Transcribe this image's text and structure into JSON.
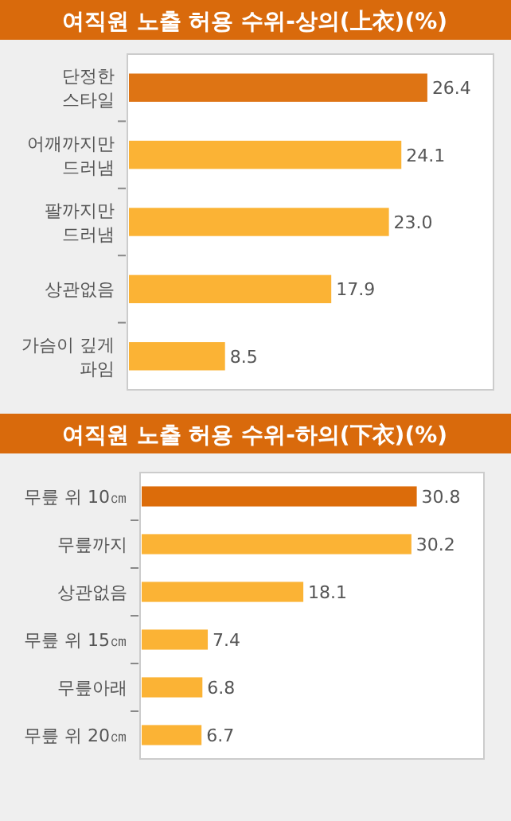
{
  "chart_data": [
    {
      "type": "bar",
      "orientation": "horizontal",
      "title": "여직원 노출 허용 수위-상의(上衣)(%)",
      "categories": [
        "단정한\n스타일",
        "어깨까지만\n드러냄",
        "팔까지만\n드러냄",
        "상관없음",
        "가슴이 깊게\n파임"
      ],
      "values": [
        26.4,
        24.1,
        23.0,
        17.9,
        8.5
      ],
      "colors": [
        "#de7414",
        "#fbb335",
        "#fbb335",
        "#fbb335",
        "#fbb335"
      ],
      "value_labels": [
        "26.4",
        "24.1",
        "23.0",
        "17.9",
        "8.5"
      ]
    },
    {
      "type": "bar",
      "orientation": "horizontal",
      "title": "여직원 노출 허용 수위-하의(下衣)(%)",
      "categories": [
        "무릎 위 10㎝",
        "무릎까지",
        "상관없음",
        "무릎 위 15㎝",
        "무릎아래",
        "무릎 위 20㎝"
      ],
      "values": [
        30.8,
        30.2,
        18.1,
        7.4,
        6.8,
        6.7
      ],
      "colors": [
        "#dc6c0a",
        "#fbb335",
        "#fbb335",
        "#fbb335",
        "#fbb335",
        "#fbb335"
      ],
      "value_labels": [
        "30.8",
        "30.2",
        "18.1",
        "7.4",
        "6.8",
        "6.7"
      ]
    }
  ]
}
